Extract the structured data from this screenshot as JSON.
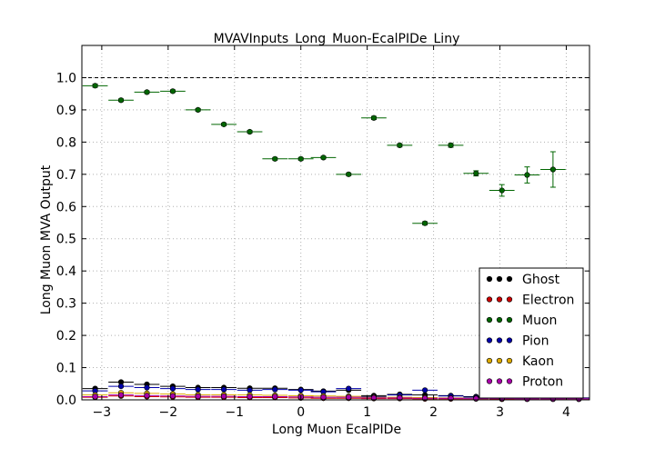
{
  "chart_data": {
    "type": "scatter",
    "title": "MVAVInputs_Long_Muon-EcalPIDe_Liny",
    "xlabel": "Long Muon EcalPIDe",
    "ylabel": "Long Muon MVA Output",
    "xlim": [
      -3.3,
      4.35
    ],
    "ylim": [
      0.0,
      1.1
    ],
    "xticks": [
      -3,
      -2,
      -1,
      0,
      1,
      2,
      3,
      4
    ],
    "yticks": [
      0.0,
      0.1,
      0.2,
      0.3,
      0.4,
      0.5,
      0.6,
      0.7,
      0.8,
      0.9,
      1.0
    ],
    "grid": true,
    "reference_line": 1.0,
    "legend_position": "bottom-right",
    "bin_half_width": 0.19,
    "series": [
      {
        "name": "Ghost",
        "color": "#000000",
        "x": [
          -3.1,
          -2.71,
          -2.32,
          -1.93,
          -1.55,
          -1.16,
          -0.77,
          -0.39,
          0.0,
          0.34,
          0.72,
          1.1,
          1.49,
          1.87,
          2.26,
          2.64,
          3.03,
          3.41,
          3.8,
          4.19
        ],
        "y": [
          0.035,
          0.055,
          0.048,
          0.042,
          0.038,
          0.038,
          0.036,
          0.036,
          0.032,
          0.027,
          0.03,
          0.013,
          0.017,
          0.015,
          0.013,
          0.01,
          0.009,
          0.008,
          0.007,
          0.006
        ]
      },
      {
        "name": "Electron",
        "color": "#cc0000",
        "x": [
          -3.1,
          -2.71,
          -2.32,
          -1.93,
          -1.55,
          -1.16,
          -0.77,
          -0.39,
          0.0,
          0.34,
          0.72,
          1.1,
          1.49,
          1.87,
          2.26,
          2.64,
          3.03,
          3.41,
          3.8,
          4.19
        ],
        "y": [
          0.008,
          0.012,
          0.01,
          0.009,
          0.008,
          0.008,
          0.007,
          0.007,
          0.006,
          0.005,
          0.005,
          0.004,
          0.004,
          0.003,
          0.003,
          0.003,
          0.002,
          0.002,
          0.002,
          0.002
        ]
      },
      {
        "name": "Muon",
        "color": "#006600",
        "x": [
          -3.1,
          -2.71,
          -2.32,
          -1.93,
          -1.55,
          -1.16,
          -0.77,
          -0.39,
          0.0,
          0.34,
          0.72,
          1.1,
          1.49,
          1.87,
          2.26,
          2.64,
          3.03,
          3.41,
          3.8
        ],
        "y": [
          0.975,
          0.93,
          0.955,
          0.958,
          0.9,
          0.855,
          0.832,
          0.748,
          0.748,
          0.752,
          0.7,
          0.875,
          0.79,
          0.548,
          0.79,
          0.703,
          0.65,
          0.698,
          0.715
        ],
        "yerr": [
          0.005,
          0.004,
          0.004,
          0.004,
          0.004,
          0.004,
          0.004,
          0.004,
          0.004,
          0.004,
          0.004,
          0.005,
          0.005,
          0.005,
          0.006,
          0.008,
          0.018,
          0.025,
          0.055
        ]
      },
      {
        "name": "Pion",
        "color": "#0000aa",
        "x": [
          -3.1,
          -2.71,
          -2.32,
          -1.93,
          -1.55,
          -1.16,
          -0.77,
          -0.39,
          0.0,
          0.34,
          0.72,
          1.1,
          1.49,
          1.87,
          2.26,
          2.64,
          3.03,
          3.41,
          3.8,
          4.19
        ],
        "y": [
          0.028,
          0.042,
          0.038,
          0.035,
          0.032,
          0.032,
          0.03,
          0.032,
          0.03,
          0.025,
          0.035,
          0.01,
          0.015,
          0.03,
          0.012,
          0.008,
          0.007,
          0.006,
          0.008,
          0.005
        ]
      },
      {
        "name": "Kaon",
        "color": "#ddaa00",
        "x": [
          -3.1,
          -2.71,
          -2.32,
          -1.93,
          -1.55,
          -1.16,
          -0.77,
          -0.39,
          0.0,
          0.34,
          0.72,
          1.1,
          1.49,
          1.87,
          2.26,
          2.64,
          3.03,
          3.41,
          3.8,
          4.19
        ],
        "y": [
          0.015,
          0.022,
          0.02,
          0.018,
          0.016,
          0.016,
          0.015,
          0.014,
          0.013,
          0.012,
          0.011,
          0.008,
          0.008,
          0.007,
          0.006,
          0.005,
          0.005,
          0.004,
          0.004,
          0.003
        ]
      },
      {
        "name": "Proton",
        "color": "#aa00aa",
        "x": [
          -3.1,
          -2.71,
          -2.32,
          -1.93,
          -1.55,
          -1.16,
          -0.77,
          -0.39,
          0.0,
          0.34,
          0.72,
          1.1,
          1.49,
          1.87,
          2.26,
          2.64,
          3.03,
          3.41,
          3.8,
          4.19
        ],
        "y": [
          0.01,
          0.015,
          0.013,
          0.012,
          0.011,
          0.011,
          0.01,
          0.01,
          0.009,
          0.008,
          0.008,
          0.006,
          0.006,
          0.005,
          0.005,
          0.004,
          0.004,
          0.003,
          0.003,
          0.003
        ]
      }
    ]
  }
}
